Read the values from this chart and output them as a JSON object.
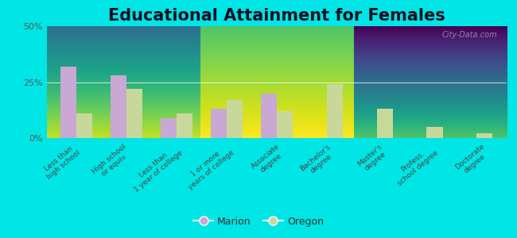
{
  "title": "Educational Attainment for Females",
  "categories": [
    "Less than\nhigh school",
    "High school\nor equiv.",
    "Less than\n1 year of college",
    "1 or more\nyears of college",
    "Associate\ndegree",
    "Bachelor's\ndegree",
    "Master's\ndegree",
    "Profess.\nschool degree",
    "Doctorate\ndegree"
  ],
  "marion_values": [
    32,
    28,
    9,
    13,
    20,
    0,
    0,
    0,
    0
  ],
  "oregon_values": [
    11,
    22,
    11,
    17,
    12,
    24,
    13,
    5,
    2
  ],
  "marion_color": "#c9a8d4",
  "oregon_color": "#c8d89a",
  "bg_top_color": "#d8e8c8",
  "bg_bottom_color": "#f0f4e8",
  "outer_background": "#00e5e5",
  "yticks": [
    0,
    25,
    50
  ],
  "ylabels": [
    "0%",
    "25%",
    "50%"
  ],
  "ylim": [
    0,
    50
  ],
  "title_fontsize": 15,
  "legend_marion": "Marion",
  "legend_oregon": "Oregon"
}
